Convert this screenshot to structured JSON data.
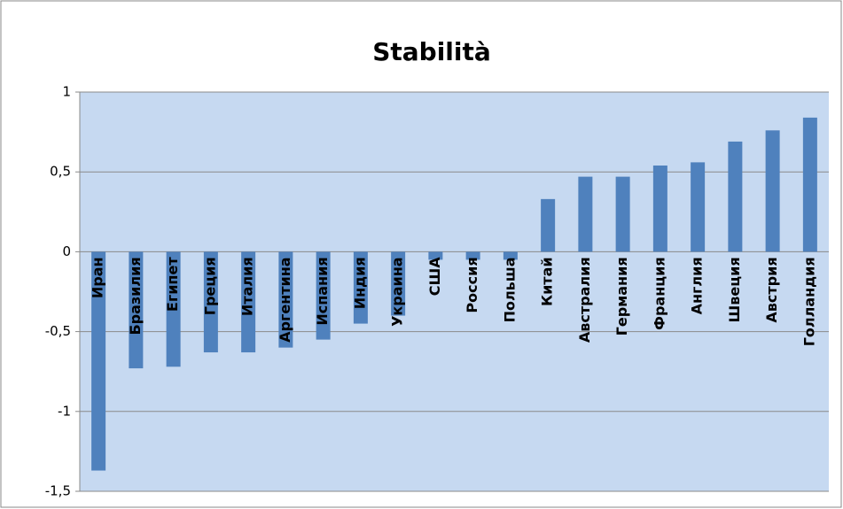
{
  "chart_data": {
    "type": "bar",
    "title": "Stabilità",
    "categories": [
      "Иран",
      "Бразилия",
      "Египет",
      "Греция",
      "Италия",
      "Аргентина",
      "Испания",
      "Индия",
      "Украина",
      "США",
      "Россия",
      "Польша",
      "Китай",
      "Австралия",
      "Германия",
      "Франция",
      "Англия",
      "Швеция",
      "Австрия",
      "Голландия"
    ],
    "values": [
      -1.37,
      -0.73,
      -0.72,
      -0.63,
      -0.63,
      -0.6,
      -0.55,
      -0.45,
      -0.4,
      -0.05,
      -0.05,
      -0.05,
      0.33,
      0.47,
      0.47,
      0.54,
      0.56,
      0.69,
      0.76,
      0.84
    ],
    "color": "#4f81bd",
    "ylim": [
      -1.5,
      1
    ],
    "yticks": [
      {
        "value": -1.5,
        "label": "-1,5"
      },
      -1,
      {
        "value": -0.5,
        "label": "-0,5"
      },
      0,
      {
        "value": 0.5,
        "label": "0,5"
      },
      1
    ],
    "grid": true
  }
}
